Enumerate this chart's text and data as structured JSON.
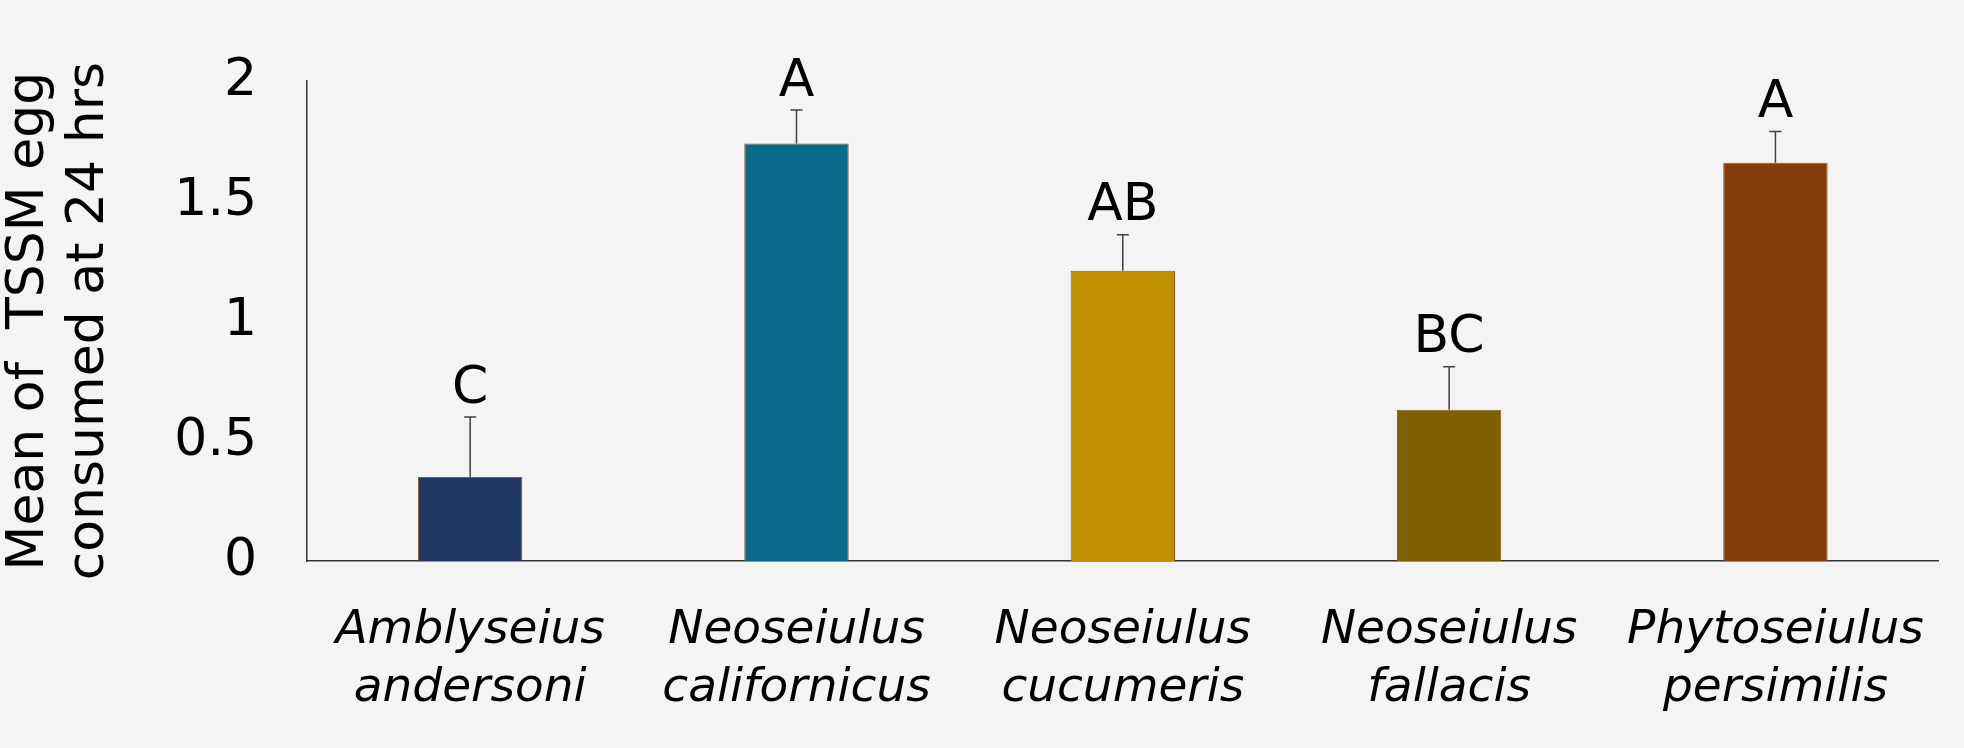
{
  "chart_data": {
    "type": "bar",
    "categories": [
      "Amblyseius andersoni",
      "Neoseiulus californicus",
      "Neoseiulus cucumeris",
      "Neoseiulus fallacis",
      "Phytoseiulus persimilis"
    ],
    "values": [
      0.35,
      1.74,
      1.21,
      0.63,
      1.66
    ],
    "colors": [
      "#1f3864",
      "#0b6a8a",
      "#bf8f00",
      "#7f6000",
      "#843c0c"
    ],
    "errors": [
      [
        0.35,
        0.6
      ],
      [
        1.74,
        1.88
      ],
      [
        1.21,
        1.36
      ],
      [
        0.63,
        0.81
      ],
      [
        1.66,
        1.79
      ]
    ],
    "ylabel": "Mean of  TSSM egg consumed at 24 hrs",
    "ylim": [
      0,
      2
    ],
    "yticks": [
      0,
      0.5,
      1,
      1.5,
      2
    ],
    "grid": false,
    "legend": false,
    "annotations": [
      "C",
      "A",
      "AB",
      "BC",
      "A"
    ]
  }
}
